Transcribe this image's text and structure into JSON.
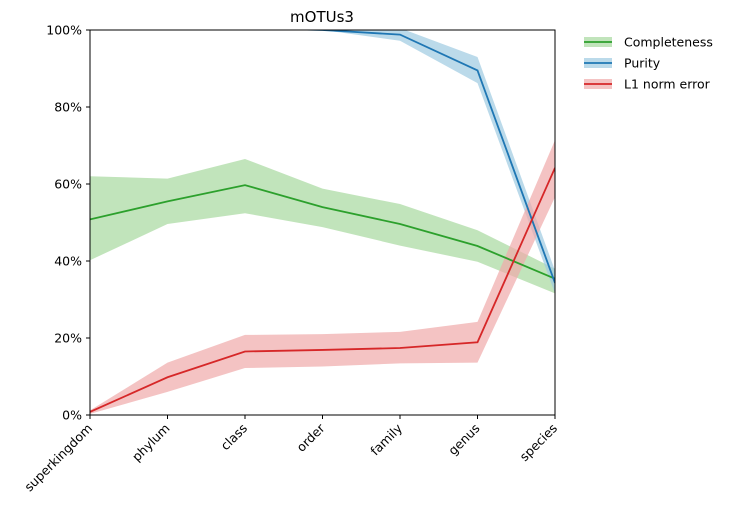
{
  "chart_data": {
    "type": "line",
    "title": "mOTUs3",
    "xlabel": "",
    "ylabel": "",
    "categories": [
      "superkingdom",
      "phylum",
      "class",
      "order",
      "family",
      "genus",
      "species"
    ],
    "ylim": [
      0,
      100
    ],
    "yticks": [
      "0%",
      "20%",
      "40%",
      "60%",
      "80%",
      "100%"
    ],
    "ytick_values": [
      0,
      20,
      40,
      60,
      80,
      100
    ],
    "grid": false,
    "legend_position": "outside-right-top",
    "series": [
      {
        "name": "Completeness",
        "color": "#2ca02c",
        "band_color": "#a6d99e",
        "values": [
          50.8,
          55.5,
          59.7,
          54.0,
          49.6,
          43.9,
          35.4
        ],
        "lower": [
          40.2,
          49.6,
          52.4,
          48.8,
          44.0,
          39.8,
          31.6
        ],
        "upper": [
          62.0,
          61.4,
          66.5,
          58.8,
          54.8,
          48.0,
          38.0
        ]
      },
      {
        "name": "Purity",
        "color": "#1f77b4",
        "band_color": "#9ecae1",
        "values": [
          100.5,
          100.5,
          100.5,
          100.0,
          98.8,
          89.5,
          34.3
        ],
        "lower": [
          100.5,
          100.5,
          100.5,
          100.0,
          97.2,
          86.2,
          31.6
        ],
        "upper": [
          100.5,
          100.5,
          100.5,
          100.5,
          100.5,
          93.0,
          37.5
        ]
      },
      {
        "name": "L1 norm error",
        "color": "#d62728",
        "band_color": "#f0a9a9",
        "values": [
          0.8,
          9.8,
          16.5,
          16.9,
          17.4,
          18.9,
          64.2
        ],
        "lower": [
          0.3,
          6.0,
          12.2,
          12.6,
          13.4,
          13.6,
          56.6
        ],
        "upper": [
          1.2,
          13.6,
          20.8,
          21.0,
          21.6,
          24.2,
          71.4
        ]
      }
    ]
  }
}
